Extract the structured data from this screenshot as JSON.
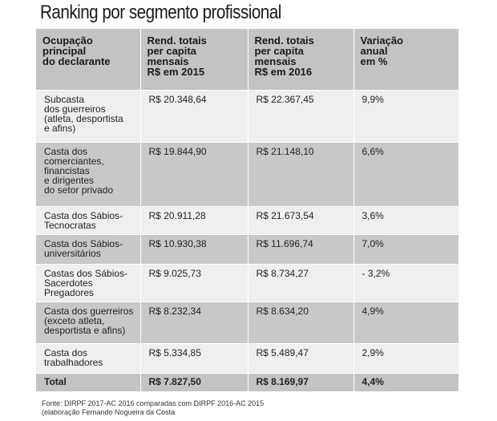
{
  "title": "Ranking por segmento profissional",
  "headers": [
    [
      "Ocupação",
      "principal",
      "do declarante"
    ],
    [
      "Rend. totais",
      "per capita",
      "mensais",
      "R$ em 2015"
    ],
    [
      "Rend. totais",
      "per capita",
      "mensais",
      "R$ em 2016"
    ],
    [
      "Variação",
      "anual",
      "em %"
    ]
  ],
  "rows": [
    {
      "label": [
        "Subcasta",
        "dos guerreiros",
        "(atleta, desportista",
        "e afins)"
      ],
      "v2015": "R$ 20.348,64",
      "v2016": "R$ 22.367,45",
      "var": "9,9%"
    },
    {
      "label": [
        "Casta dos",
        "comerciantes,",
        "financistas",
        "e dirigentes",
        "do setor privado"
      ],
      "v2015": "R$ 19.844,90",
      "v2016": "R$ 21.148,10",
      "var": "6,6%"
    },
    {
      "label": [
        "Casta dos Sábios-",
        "Tecnocratas"
      ],
      "v2015": "R$ 20.911,28",
      "v2016": "R$ 21.673,54",
      "var": "3,6%"
    },
    {
      "label": [
        "Casta dos Sábios-",
        "universitários"
      ],
      "v2015": "R$ 10.930,38",
      "v2016": "R$ 11.696,74",
      "var": "7,0%"
    },
    {
      "label": [
        "Castas dos Sábios-",
        "Sacerdotes",
        "Pregadores"
      ],
      "v2015": "R$ 9.025,73",
      "v2016": "R$ 8.734,27",
      "var": "- 3,2%"
    },
    {
      "label": [
        "Casta dos guerreiros",
        "(exceto atleta,",
        "desportista e afins)"
      ],
      "v2015": "R$ 8.232,34",
      "v2016": "R$ 8.634,20",
      "var": "4,9%"
    },
    {
      "label": [
        "Casta dos",
        "trabalhadores"
      ],
      "v2015": "R$ 5.334,85",
      "v2016": "R$ 5.489,47",
      "var": "2,9%"
    }
  ],
  "total": {
    "label": "Total",
    "v2015": "R$ 7.827,50",
    "v2016": "R$ 8.169,97",
    "var": "4,4%"
  },
  "source": [
    "Fonte: DIRPF 2017-AC 2016 comparadas com DIRPF 2016-AC 2015",
    "(elaboração Fernando Nogueira da Costa"
  ]
}
